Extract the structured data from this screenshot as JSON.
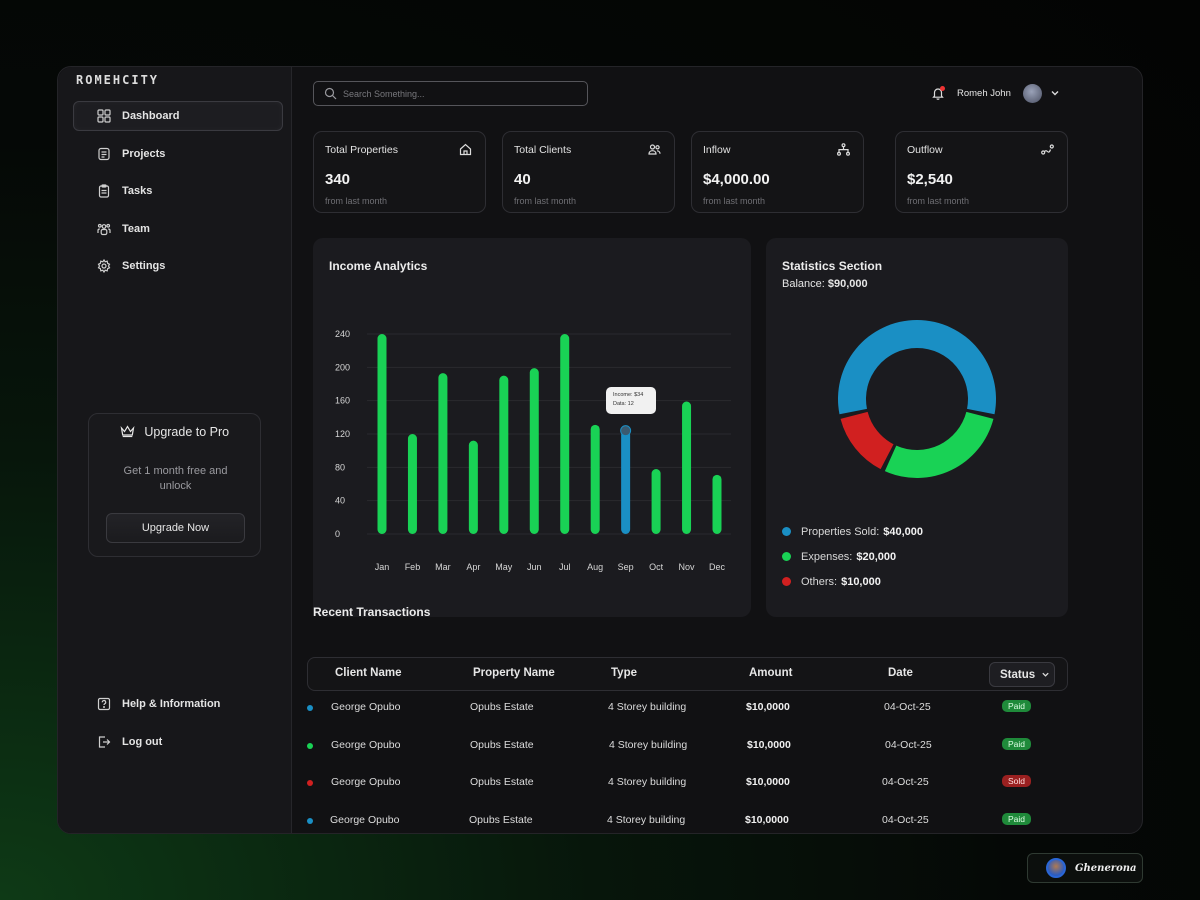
{
  "app": {
    "logo": "ROMEHCITY"
  },
  "sidebar": {
    "items": [
      {
        "label": "Dashboard",
        "icon": "grid-icon"
      },
      {
        "label": "Projects",
        "icon": "projects-icon"
      },
      {
        "label": "Tasks",
        "icon": "clipboard-icon"
      },
      {
        "label": "Team",
        "icon": "team-icon"
      },
      {
        "label": "Settings",
        "icon": "gear-icon"
      }
    ],
    "bottom": [
      {
        "label": "Help & Information",
        "icon": "help-icon"
      },
      {
        "label": "Log out",
        "icon": "logout-icon"
      }
    ],
    "upgrade": {
      "title": "Upgrade to Pro",
      "description": "Get 1 month free and unlock",
      "button": "Upgrade Now"
    }
  },
  "header": {
    "search_placeholder": "Search Something...",
    "user_name": "Romeh John"
  },
  "cards": [
    {
      "label": "Total Properties",
      "value": "340",
      "sub": "from last month",
      "icon": "home-icon"
    },
    {
      "label": "Total Clients",
      "value": "40",
      "sub": "from last month",
      "icon": "users-icon"
    },
    {
      "label": "Inflow",
      "value": "$4,000.00",
      "sub": "from last month",
      "icon": "hierarchy-icon"
    },
    {
      "label": "Outflow",
      "value": "$2,540",
      "sub": "from last month",
      "icon": "route-icon"
    }
  ],
  "income": {
    "title": "Income Analytics",
    "tooltip": {
      "line1": "Income: $34",
      "line2": "Data: 12"
    }
  },
  "statistics": {
    "title": "Statistics Section",
    "balance_label": "Balance:",
    "balance_value": "$90,000",
    "legend": [
      {
        "label": "Properties Sold:",
        "value": "$40,000",
        "color": "#1a8fc4"
      },
      {
        "label": "Expenses:",
        "value": "$20,000",
        "color": "#19d255"
      },
      {
        "label": "Others:",
        "value": "$10,000",
        "color": "#d12020"
      }
    ]
  },
  "chart_data": [
    {
      "type": "bar",
      "title": "Income Analytics",
      "categories": [
        "Jan",
        "Feb",
        "Mar",
        "Apr",
        "May",
        "Jun",
        "Jul",
        "Aug",
        "Sep",
        "Oct",
        "Nov",
        "Dec"
      ],
      "values": [
        240,
        120,
        193,
        112,
        190,
        199,
        240,
        131,
        124,
        78,
        159,
        71
      ],
      "highlight_index": 8,
      "yticks": [
        0,
        40,
        80,
        120,
        160,
        200,
        240
      ],
      "ylim": [
        0,
        240
      ],
      "colors": {
        "bar": "#19d255",
        "highlight": "#1a8fc4"
      },
      "grid": true
    },
    {
      "type": "pie",
      "title": "Statistics Section",
      "labels": [
        "Properties Sold",
        "Expenses",
        "Others"
      ],
      "values": [
        40000,
        20000,
        10000
      ],
      "colors": [
        "#1a8fc4",
        "#19d255",
        "#d12020"
      ]
    }
  ],
  "transactions": {
    "title": "Recent Transactions",
    "columns": [
      "Client Name",
      "Property Name",
      "Type",
      "Amount",
      "Date",
      "Status"
    ],
    "rows": [
      {
        "client": "George Opubo",
        "property": "Opubs Estate",
        "type": "4 Storey building",
        "amount": "$10,0000",
        "date": "04-Oct-25",
        "status": "Paid",
        "dot": "#1a8fc4"
      },
      {
        "client": "George Opubo",
        "property": "Opubs Estate",
        "type": "4 Storey building",
        "amount": "$10,0000",
        "date": "04-Oct-25",
        "status": "Paid",
        "dot": "#19d255"
      },
      {
        "client": "George Opubo",
        "property": "Opubs Estate",
        "type": "4 Storey building",
        "amount": "$10,0000",
        "date": "04-Oct-25",
        "status": "Sold",
        "dot": "#d12020"
      },
      {
        "client": "George Opubo",
        "property": "Opubs Estate",
        "type": "4 Storey building",
        "amount": "$10,0000",
        "date": "04-Oct-25",
        "status": "Paid",
        "dot": "#1a8fc4"
      }
    ]
  },
  "credit": {
    "name": "Ghenerona"
  }
}
